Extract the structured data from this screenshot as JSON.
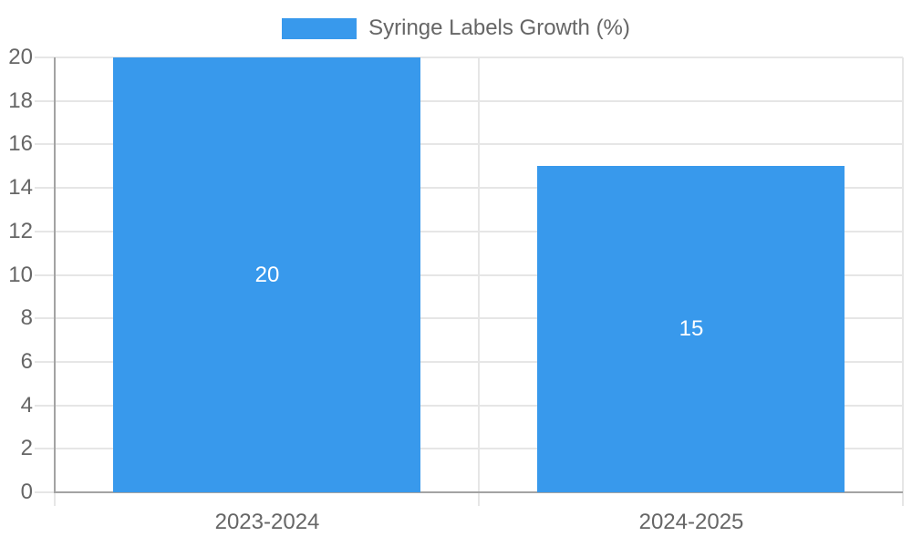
{
  "chart_data": {
    "type": "bar",
    "title": "",
    "categories": [
      "2023-2024",
      "2024-2025"
    ],
    "series": [
      {
        "name": "Syringe Labels Growth (%)",
        "values": [
          20,
          15
        ],
        "color": "#3899EC"
      }
    ],
    "data_labels": {
      "visible": true,
      "values": [
        "20",
        "15"
      ],
      "position": "center",
      "color": "#ffffff"
    },
    "xlabel": "",
    "ylabel": "",
    "ylim": [
      0,
      20
    ],
    "yticks": [
      0,
      2,
      4,
      6,
      8,
      10,
      12,
      14,
      16,
      18,
      20
    ],
    "grid": true,
    "legend_position": "top",
    "colors": {
      "bar": "#3899EC",
      "grid_line": "#e6e6e6",
      "axis_border": "#a3a3a3",
      "tick_text": "#666666",
      "legend_text": "#666666",
      "background": "#ffffff"
    }
  }
}
